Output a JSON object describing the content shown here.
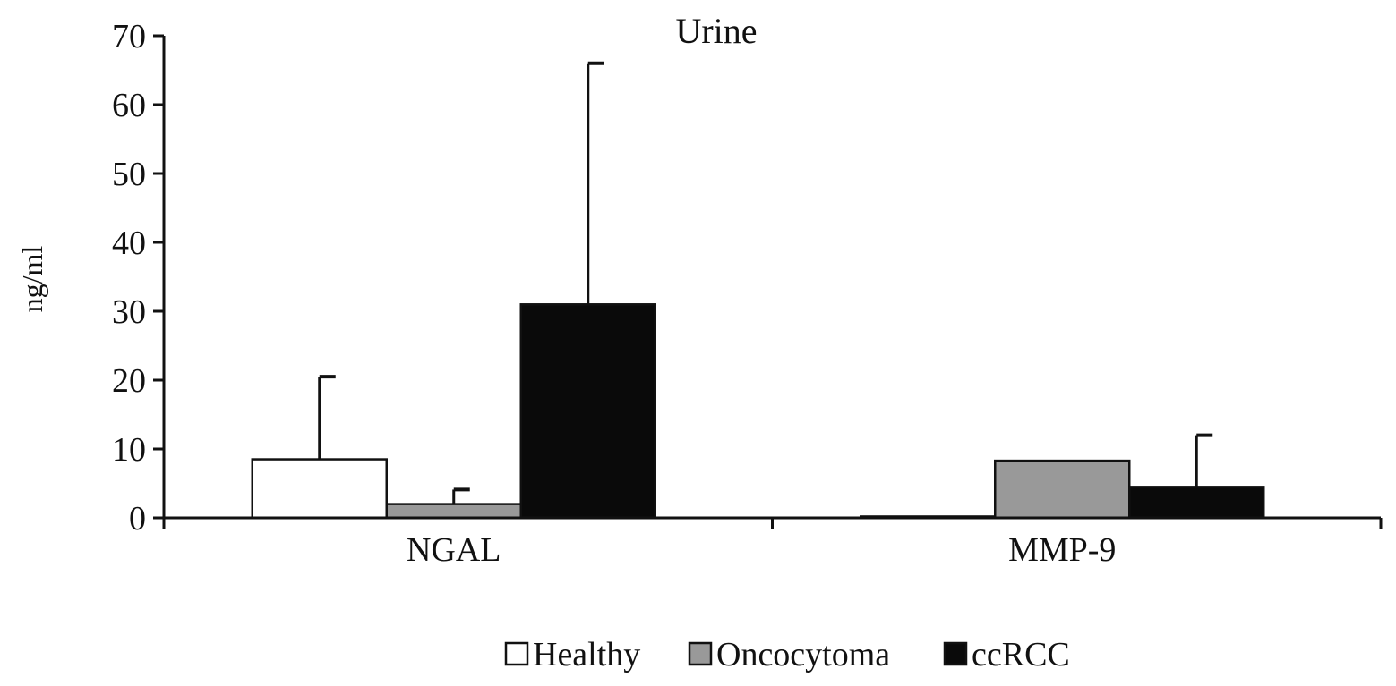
{
  "chart_data": {
    "type": "bar",
    "title": "Urine",
    "xlabel": "",
    "ylabel": "ng/ml",
    "ylim": [
      0,
      70
    ],
    "yticks": [
      0,
      10,
      20,
      30,
      40,
      50,
      60,
      70
    ],
    "categories": [
      "NGAL",
      "MMP-9"
    ],
    "series": [
      {
        "name": "Healthy",
        "color": "#ffffff",
        "values": [
          8.5,
          0.2
        ],
        "error": [
          12.0,
          null
        ]
      },
      {
        "name": "Oncocytoma",
        "color": "#999999",
        "values": [
          2.0,
          8.3
        ],
        "error": [
          2.1,
          null
        ]
      },
      {
        "name": "ccRCC",
        "color": "#0a0a0a",
        "values": [
          31.0,
          4.5
        ],
        "error": [
          35.0,
          7.5
        ]
      }
    ],
    "grid": false,
    "legend_position": "bottom"
  }
}
